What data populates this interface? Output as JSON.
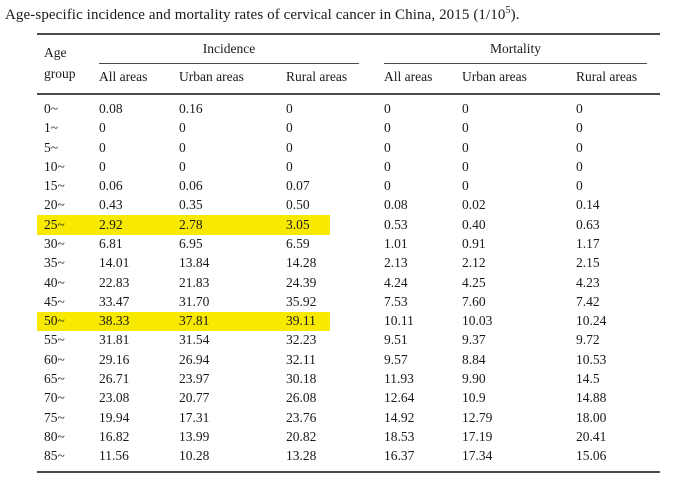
{
  "title": {
    "prefix": "Age-specific incidence and mortality rates of cervical cancer in China, 2015 (1/10",
    "sup": "5",
    "suffix": ")."
  },
  "header": {
    "age_group": "Age group",
    "groups": [
      {
        "label": "Incidence",
        "cols": [
          "All areas",
          "Urban areas",
          "Rural areas"
        ]
      },
      {
        "label": "Mortality",
        "cols": [
          "All areas",
          "Urban areas",
          "Rural areas"
        ]
      }
    ]
  },
  "highlight_color": "#f8e900",
  "rows": [
    {
      "age": "0~",
      "inc_all": "0.08",
      "inc_urban": "0.16",
      "inc_rural": "0",
      "mort_all": "0",
      "mort_urban": "0",
      "mort_rural": "0",
      "highlight": false
    },
    {
      "age": "1~",
      "inc_all": "0",
      "inc_urban": "0",
      "inc_rural": "0",
      "mort_all": "0",
      "mort_urban": "0",
      "mort_rural": "0",
      "highlight": false
    },
    {
      "age": "5~",
      "inc_all": "0",
      "inc_urban": "0",
      "inc_rural": "0",
      "mort_all": "0",
      "mort_urban": "0",
      "mort_rural": "0",
      "highlight": false
    },
    {
      "age": "10~",
      "inc_all": "0",
      "inc_urban": "0",
      "inc_rural": "0",
      "mort_all": "0",
      "mort_urban": "0",
      "mort_rural": "0",
      "highlight": false
    },
    {
      "age": "15~",
      "inc_all": "0.06",
      "inc_urban": "0.06",
      "inc_rural": "0.07",
      "mort_all": "0",
      "mort_urban": "0",
      "mort_rural": "0",
      "highlight": false
    },
    {
      "age": "20~",
      "inc_all": "0.43",
      "inc_urban": "0.35",
      "inc_rural": "0.50",
      "mort_all": "0.08",
      "mort_urban": "0.02",
      "mort_rural": "0.14",
      "highlight": false
    },
    {
      "age": "25~",
      "inc_all": "2.92",
      "inc_urban": "2.78",
      "inc_rural": "3.05",
      "mort_all": "0.53",
      "mort_urban": "0.40",
      "mort_rural": "0.63",
      "highlight": true
    },
    {
      "age": "30~",
      "inc_all": "6.81",
      "inc_urban": "6.95",
      "inc_rural": "6.59",
      "mort_all": "1.01",
      "mort_urban": "0.91",
      "mort_rural": "1.17",
      "highlight": false
    },
    {
      "age": "35~",
      "inc_all": "14.01",
      "inc_urban": "13.84",
      "inc_rural": "14.28",
      "mort_all": "2.13",
      "mort_urban": "2.12",
      "mort_rural": "2.15",
      "highlight": false
    },
    {
      "age": "40~",
      "inc_all": "22.83",
      "inc_urban": "21.83",
      "inc_rural": "24.39",
      "mort_all": "4.24",
      "mort_urban": "4.25",
      "mort_rural": "4.23",
      "highlight": false
    },
    {
      "age": "45~",
      "inc_all": "33.47",
      "inc_urban": "31.70",
      "inc_rural": "35.92",
      "mort_all": "7.53",
      "mort_urban": "7.60",
      "mort_rural": "7.42",
      "highlight": false
    },
    {
      "age": "50~",
      "inc_all": "38.33",
      "inc_urban": "37.81",
      "inc_rural": "39.11",
      "mort_all": "10.11",
      "mort_urban": "10.03",
      "mort_rural": "10.24",
      "highlight": true
    },
    {
      "age": "55~",
      "inc_all": "31.81",
      "inc_urban": "31.54",
      "inc_rural": "32.23",
      "mort_all": "9.51",
      "mort_urban": "9.37",
      "mort_rural": "9.72",
      "highlight": false
    },
    {
      "age": "60~",
      "inc_all": "29.16",
      "inc_urban": "26.94",
      "inc_rural": "32.11",
      "mort_all": "9.57",
      "mort_urban": "8.84",
      "mort_rural": "10.53",
      "highlight": false
    },
    {
      "age": "65~",
      "inc_all": "26.71",
      "inc_urban": "23.97",
      "inc_rural": "30.18",
      "mort_all": "11.93",
      "mort_urban": "9.90",
      "mort_rural": "14.5",
      "highlight": false
    },
    {
      "age": "70~",
      "inc_all": "23.08",
      "inc_urban": "20.77",
      "inc_rural": "26.08",
      "mort_all": "12.64",
      "mort_urban": "10.9",
      "mort_rural": "14.88",
      "highlight": false
    },
    {
      "age": "75~",
      "inc_all": "19.94",
      "inc_urban": "17.31",
      "inc_rural": "23.76",
      "mort_all": "14.92",
      "mort_urban": "12.79",
      "mort_rural": "18.00",
      "highlight": false
    },
    {
      "age": "80~",
      "inc_all": "16.82",
      "inc_urban": "13.99",
      "inc_rural": "20.82",
      "mort_all": "18.53",
      "mort_urban": "17.19",
      "mort_rural": "20.41",
      "highlight": false
    },
    {
      "age": "85~",
      "inc_all": "11.56",
      "inc_urban": "10.28",
      "inc_rural": "13.28",
      "mort_all": "16.37",
      "mort_urban": "17.34",
      "mort_rural": "15.06",
      "highlight": false
    }
  ]
}
